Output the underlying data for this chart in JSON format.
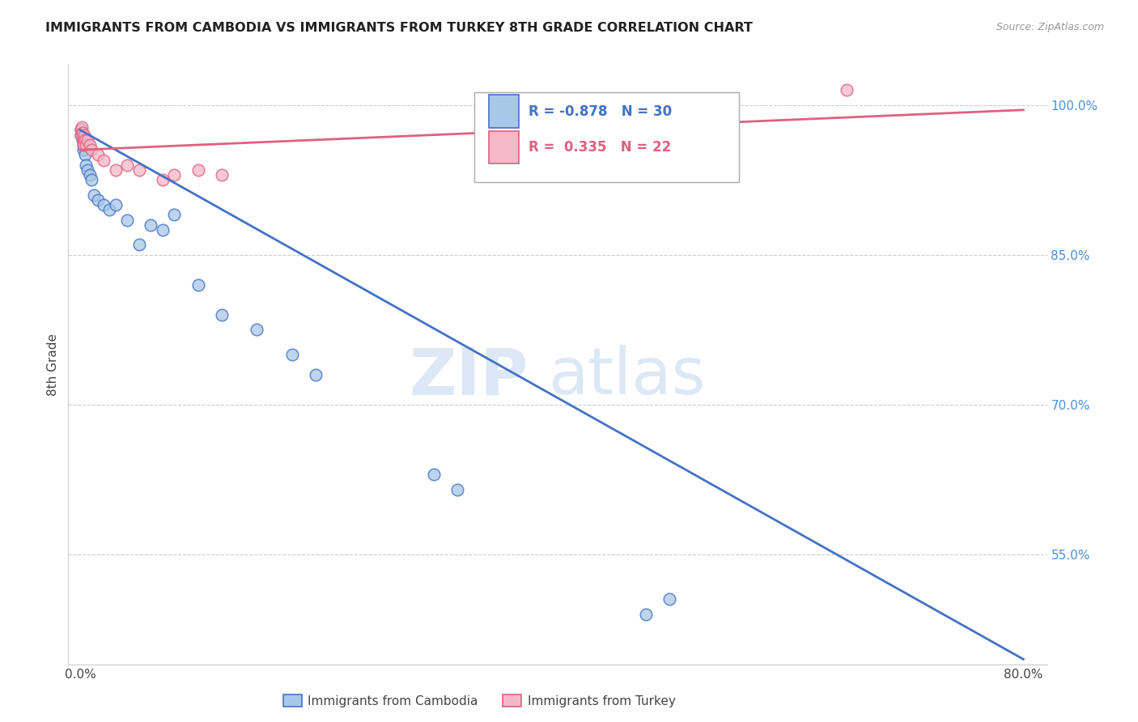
{
  "title": "IMMIGRANTS FROM CAMBODIA VS IMMIGRANTS FROM TURKEY 8TH GRADE CORRELATION CHART",
  "source": "Source: ZipAtlas.com",
  "ylabel_left": "8th Grade",
  "ylabel_right_ticks": [
    55.0,
    70.0,
    85.0,
    100.0
  ],
  "xlim": [
    -1.0,
    82.0
  ],
  "ylim": [
    44.0,
    104.0
  ],
  "legend_label_cambodia": "Immigrants from Cambodia",
  "legend_label_turkey": "Immigrants from Turkey",
  "R_cambodia": -0.878,
  "N_cambodia": 30,
  "R_turkey": 0.335,
  "N_turkey": 22,
  "color_cambodia": "#a8c8e8",
  "color_cambodia_line": "#4472c4",
  "color_turkey": "#f4b8c8",
  "color_turkey_line": "#e06080",
  "color_right_axis": "#4a90d9",
  "color_grid": "#cccccc",
  "watermark_zip": "ZIP",
  "watermark_atlas": "atlas",
  "watermark_color": "#dce8f5",
  "cambodia_x": [
    0.05,
    0.1,
    0.15,
    0.2,
    0.25,
    0.3,
    0.4,
    0.5,
    0.6,
    0.8,
    1.0,
    1.2,
    1.5,
    2.0,
    2.5,
    3.0,
    4.0,
    5.0,
    6.0,
    7.0,
    8.0,
    10.0,
    12.0,
    15.0,
    18.0,
    20.0,
    30.0,
    32.0,
    48.0,
    50.0
  ],
  "cambodia_y": [
    97.5,
    97.0,
    97.2,
    96.5,
    96.0,
    95.5,
    95.0,
    94.0,
    93.5,
    93.0,
    92.5,
    91.0,
    90.5,
    90.0,
    89.5,
    90.0,
    88.5,
    86.0,
    88.0,
    87.5,
    89.0,
    82.0,
    79.0,
    77.5,
    75.0,
    73.0,
    63.0,
    61.5,
    49.0,
    50.5
  ],
  "turkey_x": [
    0.05,
    0.1,
    0.15,
    0.2,
    0.25,
    0.3,
    0.35,
    0.4,
    0.5,
    0.6,
    0.8,
    1.0,
    1.5,
    2.0,
    3.0,
    4.0,
    5.0,
    7.0,
    8.0,
    10.0,
    12.0,
    65.0
  ],
  "turkey_y": [
    97.0,
    97.5,
    97.8,
    97.2,
    96.5,
    96.0,
    97.0,
    96.5,
    96.0,
    96.5,
    96.0,
    95.5,
    95.0,
    94.5,
    93.5,
    94.0,
    93.5,
    92.5,
    93.0,
    93.5,
    93.0,
    101.5
  ],
  "cam_trend_x": [
    0.0,
    80.0
  ],
  "cam_trend_y": [
    97.5,
    44.5
  ],
  "tur_trend_x": [
    0.0,
    80.0
  ],
  "tur_trend_y": [
    95.5,
    99.5
  ]
}
